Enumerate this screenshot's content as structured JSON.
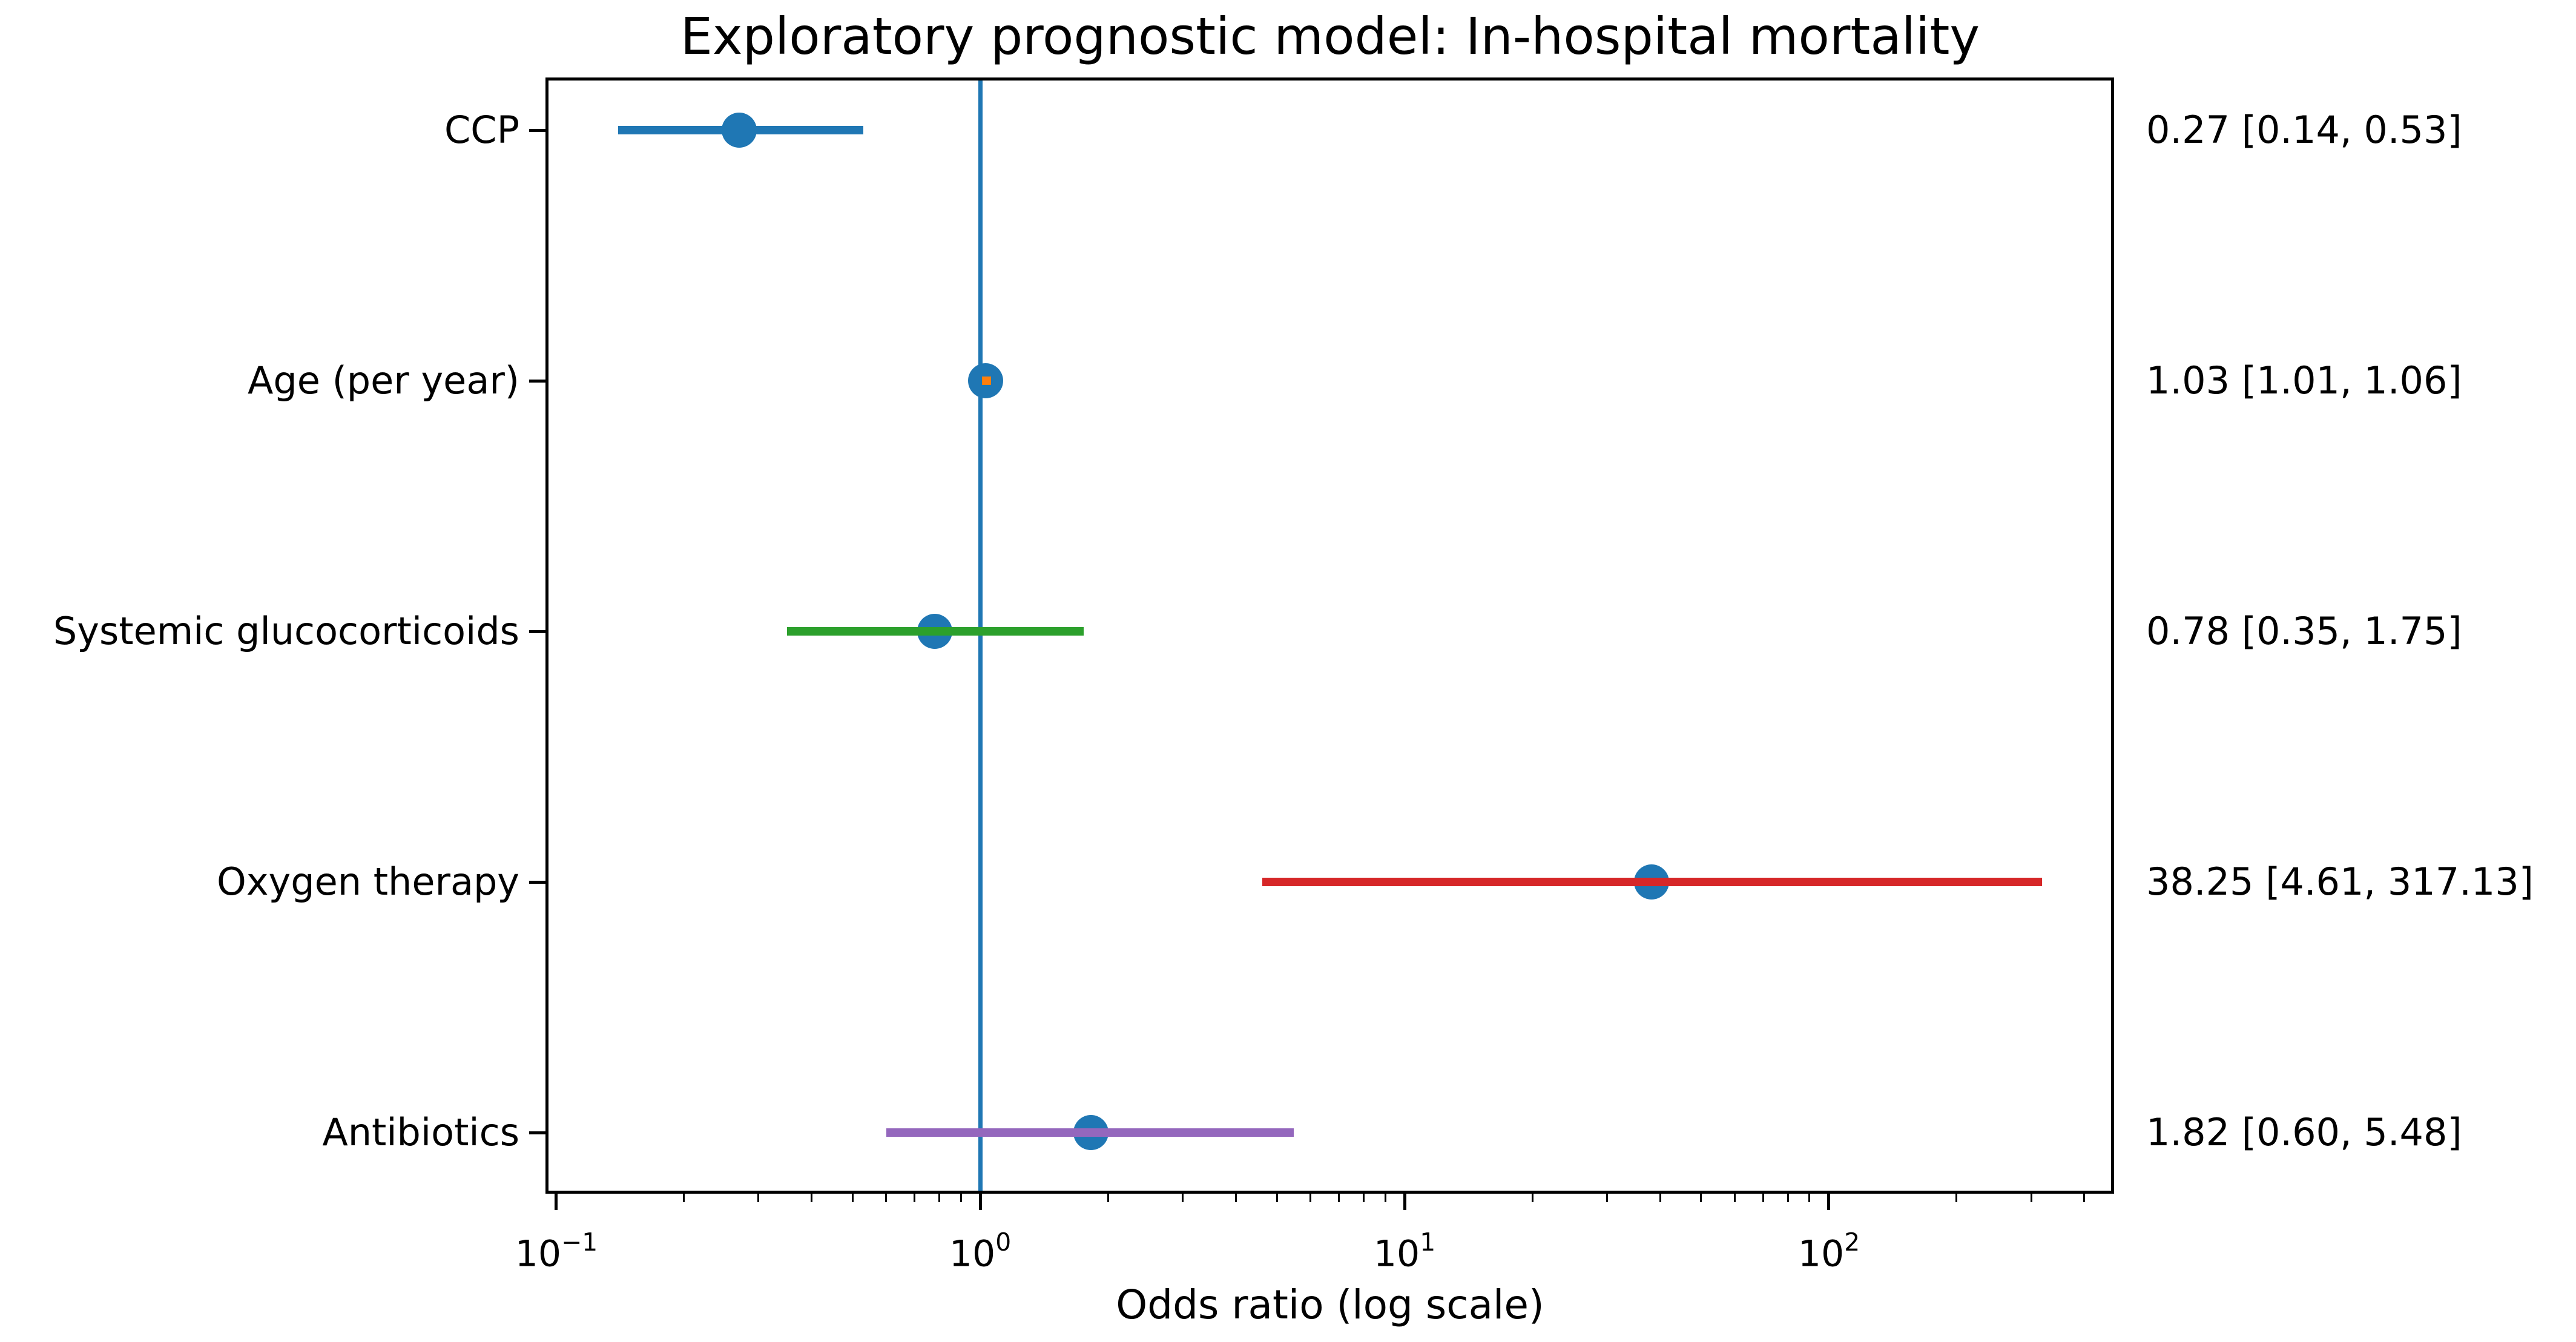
{
  "figure": {
    "background": "#ffffff"
  },
  "chart_data": {
    "type": "forest",
    "title": "Exploratory prognostic model: In-hospital mortality",
    "xlabel": "Odds ratio (log scale)",
    "x_scale": "log",
    "xlim": [
      0.095,
      467
    ],
    "grid": false,
    "axis_color": "#000000",
    "text_color": "#000000",
    "reference_line": {
      "x": 1.0,
      "color": "#1f77b4"
    },
    "marker_color": "#1f77b4",
    "x_major_ticks": [
      {
        "value": 0.1,
        "label_base": "10",
        "label_exp": "−1"
      },
      {
        "value": 1.0,
        "label_base": "10",
        "label_exp": "0"
      },
      {
        "value": 10.0,
        "label_base": "10",
        "label_exp": "1"
      },
      {
        "value": 100.0,
        "label_base": "10",
        "label_exp": "2"
      }
    ],
    "rows": [
      {
        "label": "CCP",
        "or": 0.27,
        "ci_low": 0.14,
        "ci_high": 0.53,
        "ci_color": "#1f77b4",
        "annotation": "0.27 [0.14, 0.53]"
      },
      {
        "label": "Age (per year)",
        "or": 1.03,
        "ci_low": 1.01,
        "ci_high": 1.06,
        "ci_color": "#ff7f0e",
        "annotation": "1.03 [1.01, 1.06]"
      },
      {
        "label": "Systemic glucocorticoids",
        "or": 0.78,
        "ci_low": 0.35,
        "ci_high": 1.75,
        "ci_color": "#2ca02c",
        "annotation": "0.78 [0.35, 1.75]"
      },
      {
        "label": "Oxygen therapy",
        "or": 38.25,
        "ci_low": 4.61,
        "ci_high": 317.13,
        "ci_color": "#d62728",
        "annotation": "38.25 [4.61, 317.13]"
      },
      {
        "label": "Antibiotics",
        "or": 1.82,
        "ci_low": 0.6,
        "ci_high": 5.48,
        "ci_color": "#9467bd",
        "annotation": "1.82 [0.60, 5.48]"
      }
    ]
  }
}
